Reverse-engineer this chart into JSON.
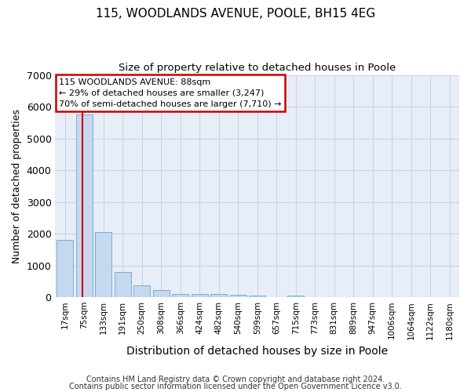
{
  "title1": "115, WOODLANDS AVENUE, POOLE, BH15 4EG",
  "title2": "Size of property relative to detached houses in Poole",
  "xlabel": "Distribution of detached houses by size in Poole",
  "ylabel": "Number of detached properties",
  "bar_labels": [
    "17sqm",
    "75sqm",
    "133sqm",
    "191sqm",
    "250sqm",
    "308sqm",
    "366sqm",
    "424sqm",
    "482sqm",
    "540sqm",
    "599sqm",
    "657sqm",
    "715sqm",
    "773sqm",
    "831sqm",
    "889sqm",
    "947sqm",
    "1006sqm",
    "1064sqm",
    "1122sqm",
    "1180sqm"
  ],
  "bar_values": [
    1800,
    5750,
    2050,
    800,
    375,
    225,
    100,
    90,
    90,
    75,
    55,
    0,
    55,
    0,
    0,
    0,
    0,
    0,
    0,
    0,
    0
  ],
  "bar_color": "#c5d8ef",
  "bar_edge_color": "#7aadd4",
  "annotation_label": "115 WOODLANDS AVENUE: 88sqm",
  "annotation_line1": "← 29% of detached houses are smaller (3,247)",
  "annotation_line2": "70% of semi-detached houses are larger (7,710) →",
  "annotation_box_color": "#ffffff",
  "annotation_box_edge": "#cc0000",
  "vline_color": "#cc0000",
  "grid_color": "#c8d4e8",
  "background_color": "#e8eef8",
  "ylim": [
    0,
    7000
  ],
  "yticks": [
    0,
    1000,
    2000,
    3000,
    4000,
    5000,
    6000,
    7000
  ],
  "footer1": "Contains HM Land Registry data © Crown copyright and database right 2024.",
  "footer2": "Contains public sector information licensed under the Open Government Licence v3.0.",
  "title1_fontsize": 11,
  "title2_fontsize": 9.5,
  "ylabel_fontsize": 9,
  "xlabel_fontsize": 10,
  "footer_fontsize": 7
}
